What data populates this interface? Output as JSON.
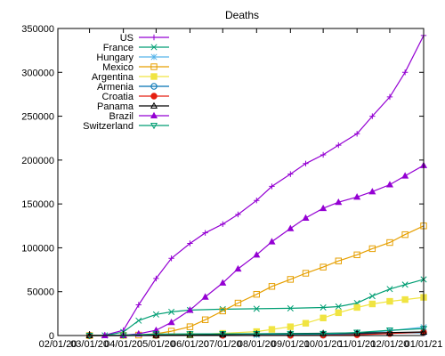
{
  "chart_data": {
    "type": "line",
    "title": "Deaths",
    "xlabel": "",
    "ylabel": "",
    "ylim": [
      0,
      350000
    ],
    "yticks": [
      0,
      50000,
      100000,
      150000,
      200000,
      250000,
      300000,
      350000
    ],
    "ytick_labels": [
      "0",
      "50000",
      "100000",
      "150000",
      "200000",
      "250000",
      "300000",
      "350000"
    ],
    "xlim": [
      "2020-02-01",
      "2021-01-01"
    ],
    "xticks": [
      "2020-02-01",
      "2020-03-01",
      "2020-04-01",
      "2020-05-01",
      "2020-06-01",
      "2020-07-01",
      "2020-08-01",
      "2020-09-01",
      "2020-10-01",
      "2020-11-01",
      "2020-12-01",
      "2021-01-01"
    ],
    "xtick_labels": [
      "02/01/20",
      "03/01/20",
      "04/01/20",
      "05/01/20",
      "06/01/20",
      "07/01/20",
      "08/01/20",
      "09/01/20",
      "10/01/20",
      "11/01/20",
      "12/01/20",
      "01/01/21"
    ],
    "grid": false,
    "legend_position": "top-left",
    "series": [
      {
        "name": "US",
        "color": "#9400d3",
        "marker": "plus",
        "x": [
          "2020-03-01",
          "2020-03-15",
          "2020-04-01",
          "2020-04-15",
          "2020-05-01",
          "2020-05-15",
          "2020-06-01",
          "2020-06-15",
          "2020-07-01",
          "2020-07-15",
          "2020-08-01",
          "2020-08-15",
          "2020-09-01",
          "2020-09-15",
          "2020-10-01",
          "2020-10-15",
          "2020-11-01",
          "2020-11-15",
          "2020-12-01",
          "2020-12-15",
          "2021-01-01"
        ],
        "y": [
          100,
          500,
          6000,
          35000,
          65000,
          88000,
          105000,
          117000,
          127000,
          138000,
          154000,
          170000,
          184000,
          196000,
          206000,
          217000,
          230000,
          250000,
          272000,
          300000,
          342000
        ]
      },
      {
        "name": "France",
        "color": "#009e73",
        "marker": "x",
        "x": [
          "2020-03-01",
          "2020-03-15",
          "2020-04-01",
          "2020-04-15",
          "2020-05-01",
          "2020-05-15",
          "2020-06-01",
          "2020-07-01",
          "2020-08-01",
          "2020-09-01",
          "2020-10-01",
          "2020-10-15",
          "2020-11-01",
          "2020-11-15",
          "2020-12-01",
          "2020-12-15",
          "2021-01-01"
        ],
        "y": [
          0,
          100,
          4000,
          17000,
          24000,
          27000,
          29000,
          30000,
          30500,
          31000,
          32000,
          33000,
          37000,
          45000,
          53000,
          58000,
          64000
        ]
      },
      {
        "name": "Hungary",
        "color": "#56b4e9",
        "marker": "star",
        "x": [
          "2020-03-01",
          "2020-04-01",
          "2020-05-01",
          "2020-06-01",
          "2020-07-01",
          "2020-08-01",
          "2020-09-01",
          "2020-10-01",
          "2020-11-01",
          "2020-12-01",
          "2021-01-01"
        ],
        "y": [
          0,
          20,
          400,
          550,
          600,
          610,
          630,
          900,
          2500,
          5500,
          9500
        ]
      },
      {
        "name": "Mexico",
        "color": "#e69f00",
        "marker": "square",
        "x": [
          "2020-03-01",
          "2020-04-01",
          "2020-04-15",
          "2020-05-01",
          "2020-05-15",
          "2020-06-01",
          "2020-06-15",
          "2020-07-01",
          "2020-07-15",
          "2020-08-01",
          "2020-08-15",
          "2020-09-01",
          "2020-09-15",
          "2020-10-01",
          "2020-10-15",
          "2020-11-01",
          "2020-11-15",
          "2020-12-01",
          "2020-12-15",
          "2021-01-01"
        ],
        "y": [
          0,
          100,
          500,
          2000,
          5000,
          10000,
          18000,
          28000,
          37000,
          47000,
          56000,
          64000,
          71000,
          78000,
          85000,
          92000,
          99000,
          106000,
          115000,
          125000
        ]
      },
      {
        "name": "Argentina",
        "color": "#f0e442",
        "marker": "filled-square",
        "x": [
          "2020-03-01",
          "2020-04-01",
          "2020-05-01",
          "2020-06-01",
          "2020-07-01",
          "2020-08-01",
          "2020-08-15",
          "2020-09-01",
          "2020-09-15",
          "2020-10-01",
          "2020-10-15",
          "2020-11-01",
          "2020-11-15",
          "2020-12-01",
          "2020-12-15",
          "2021-01-01"
        ],
        "y": [
          0,
          50,
          300,
          900,
          2500,
          4500,
          7000,
          10000,
          14000,
          20000,
          26000,
          32000,
          36000,
          39000,
          41000,
          43500
        ]
      },
      {
        "name": "Armenia",
        "color": "#0072b2",
        "marker": "circle",
        "x": [
          "2020-03-01",
          "2020-05-01",
          "2020-07-01",
          "2020-09-01",
          "2020-10-01",
          "2020-11-01",
          "2020-12-01",
          "2021-01-01"
        ],
        "y": [
          0,
          30,
          600,
          1000,
          1200,
          1800,
          2600,
          3200
        ]
      },
      {
        "name": "Croatia",
        "color": "#e51e10",
        "marker": "filled-circle",
        "x": [
          "2020-03-01",
          "2020-05-01",
          "2020-07-01",
          "2020-09-01",
          "2020-10-01",
          "2020-11-01",
          "2020-12-01",
          "2021-01-01"
        ],
        "y": [
          0,
          90,
          110,
          250,
          350,
          900,
          2200,
          3900
        ]
      },
      {
        "name": "Panama",
        "color": "#000000",
        "marker": "triangle",
        "x": [
          "2020-03-01",
          "2020-04-01",
          "2020-05-01",
          "2020-06-01",
          "2020-07-01",
          "2020-08-01",
          "2020-09-01",
          "2020-10-01",
          "2020-11-01",
          "2020-12-01",
          "2021-01-01"
        ],
        "y": [
          0,
          100,
          300,
          600,
          1200,
          1900,
          2300,
          2500,
          2800,
          3300,
          4100
        ]
      },
      {
        "name": "Brazil",
        "color": "#9400d3",
        "marker": "filled-triangle",
        "x": [
          "2020-03-15",
          "2020-04-01",
          "2020-04-15",
          "2020-05-01",
          "2020-05-15",
          "2020-06-01",
          "2020-06-15",
          "2020-07-01",
          "2020-07-15",
          "2020-08-01",
          "2020-08-15",
          "2020-09-01",
          "2020-09-15",
          "2020-10-01",
          "2020-10-15",
          "2020-11-01",
          "2020-11-15",
          "2020-12-01",
          "2020-12-15",
          "2021-01-01"
        ],
        "y": [
          0,
          300,
          2000,
          6000,
          15000,
          29000,
          44000,
          60000,
          76000,
          92000,
          107000,
          122000,
          134000,
          145000,
          152000,
          158000,
          164000,
          172000,
          182000,
          194000
        ]
      },
      {
        "name": "Switzerland",
        "color": "#009e73",
        "marker": "triangle-down",
        "x": [
          "2020-03-01",
          "2020-04-01",
          "2020-05-01",
          "2020-06-01",
          "2020-07-01",
          "2020-08-01",
          "2020-09-01",
          "2020-10-01",
          "2020-11-01",
          "2020-12-01",
          "2021-01-01"
        ],
        "y": [
          0,
          450,
          1700,
          1900,
          1950,
          2000,
          2050,
          2100,
          3500,
          6000,
          7800
        ]
      }
    ]
  }
}
